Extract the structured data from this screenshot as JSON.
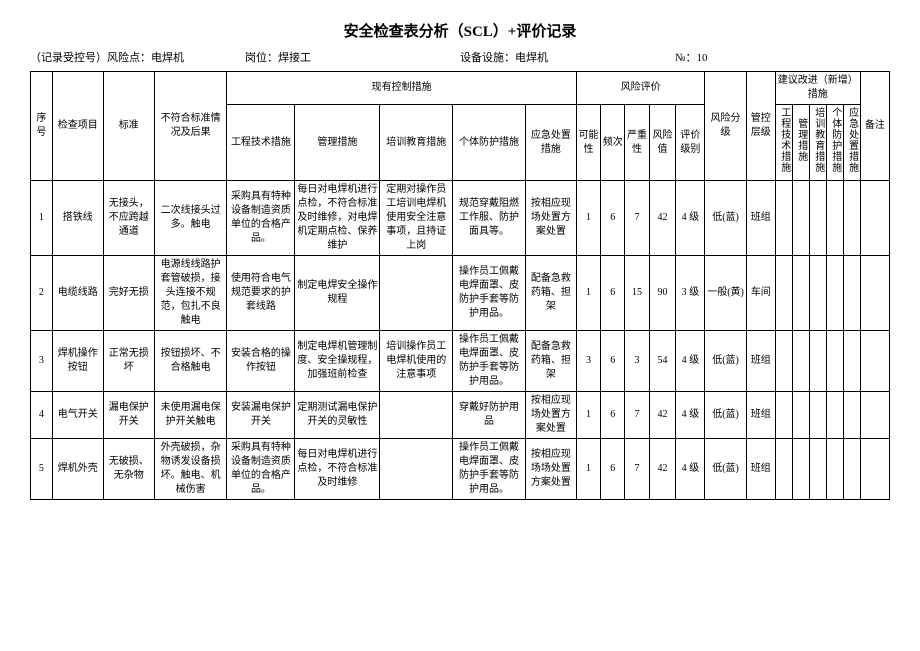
{
  "title": "安全检查表分析（SCL）+评价记录",
  "meta": {
    "record_label": "（记录受控号）风险点：电焊机",
    "post_label": "岗位：焊接工",
    "equip_label": "设备设施：电焊机",
    "no_label": "№：10"
  },
  "head": {
    "seq": "序号",
    "item": "检查项目",
    "std": "标准",
    "non": "不符合标准情况及后果",
    "existing": "现有控制措施",
    "eng": "工程技术措施",
    "mgmt": "管理措施",
    "train": "培训教育措施",
    "prot": "个体防护措施",
    "emer": "应急处置措施",
    "risk": "风险评价",
    "p": "可能性",
    "f": "频次",
    "s": "严重性",
    "r": "风险值",
    "lvl": "评价级别",
    "rcls": "风险分级",
    "mlvl": "管控层级",
    "suggest": "建议改进（新增）措施",
    "seng": "工程技术措施",
    "smgmt": "管理措施",
    "strain": "培训教育措施",
    "sprot": "个体防护措施",
    "semer": "应急处置措施",
    "note": "备注"
  },
  "rows": [
    {
      "seq": "1",
      "item": "搭铁线",
      "std": "无接头，不应跨越通道",
      "non": "二次线接头过多。触电",
      "eng": "采购具有特种设备制造资质单位的合格产品。",
      "mgmt": "每日对电焊机进行点检，不符合标准及时维修，对电焊机定期点检、保养维护",
      "train": "定期对操作员工培训电焊机使用安全注意事项，且持证上岗",
      "prot": "规范穿戴阻燃工作服、防护面具等。",
      "emer": "按相应现场处置方案处置",
      "p": "1",
      "f": "6",
      "s": "7",
      "r": "42",
      "lvl": "4 级",
      "rcls": "低(蓝)",
      "mlvl": "班组"
    },
    {
      "seq": "2",
      "item": "电缆线路",
      "std": "完好无损",
      "non": "电源线线路护套管破损，接头连接不规范，包扎不良触电",
      "eng": "使用符合电气规范要求的护套线路",
      "mgmt": "制定电焊安全操作规程",
      "train": "",
      "prot": "操作员工佩戴电焊面罩、皮防护手套等防护用品。",
      "emer": "配备急救药箱、担架",
      "p": "1",
      "f": "6",
      "s": "15",
      "r": "90",
      "lvl": "3 级",
      "rcls": "一般(黄)",
      "mlvl": "车间"
    },
    {
      "seq": "3",
      "item": "焊机操作按钮",
      "std": "正常无损坏",
      "non": "按钮损坏、不合格触电",
      "eng": "安装合格的操作按钮",
      "mgmt": "制定电焊机管理制度、安全操规程，加强班前检查",
      "train": "培训操作员工电焊机使用的注意事项",
      "prot": "操作员工佩戴电焊面罩、皮防护手套等防护用品。",
      "emer": "配备急救药箱、担架",
      "p": "3",
      "f": "6",
      "s": "3",
      "r": "54",
      "lvl": "4 级",
      "rcls": "低(蓝)",
      "mlvl": "班组"
    },
    {
      "seq": "4",
      "item": "电气开关",
      "std": "漏电保护开关",
      "non": "未使用漏电保护开关触电",
      "eng": "安装漏电保护开关",
      "mgmt": "定期测试漏电保护开关的灵敏性",
      "train": "",
      "prot": "穿戴好防护用品",
      "emer": "按相应现场处置方案处置",
      "p": "1",
      "f": "6",
      "s": "7",
      "r": "42",
      "lvl": "4 级",
      "rcls": "低(蓝)",
      "mlvl": "班组"
    },
    {
      "seq": "5",
      "item": "焊机外壳",
      "std": "无破损、无杂物",
      "non": "外壳破损，杂物诱发设备损坏。触电、机械伤害",
      "eng": "采购具有特种设备制造资质单位的合格产品。",
      "mgmt": "每日对电焊机进行点检，不符合标准及时维修",
      "train": "",
      "prot": "操作员工佩戴电焊面罩、皮防护手套等防护用品。",
      "emer": "按相应现场场处置方案处置",
      "p": "1",
      "f": "6",
      "s": "7",
      "r": "42",
      "lvl": "4 级",
      "rcls": "低(蓝)",
      "mlvl": "班组"
    }
  ]
}
